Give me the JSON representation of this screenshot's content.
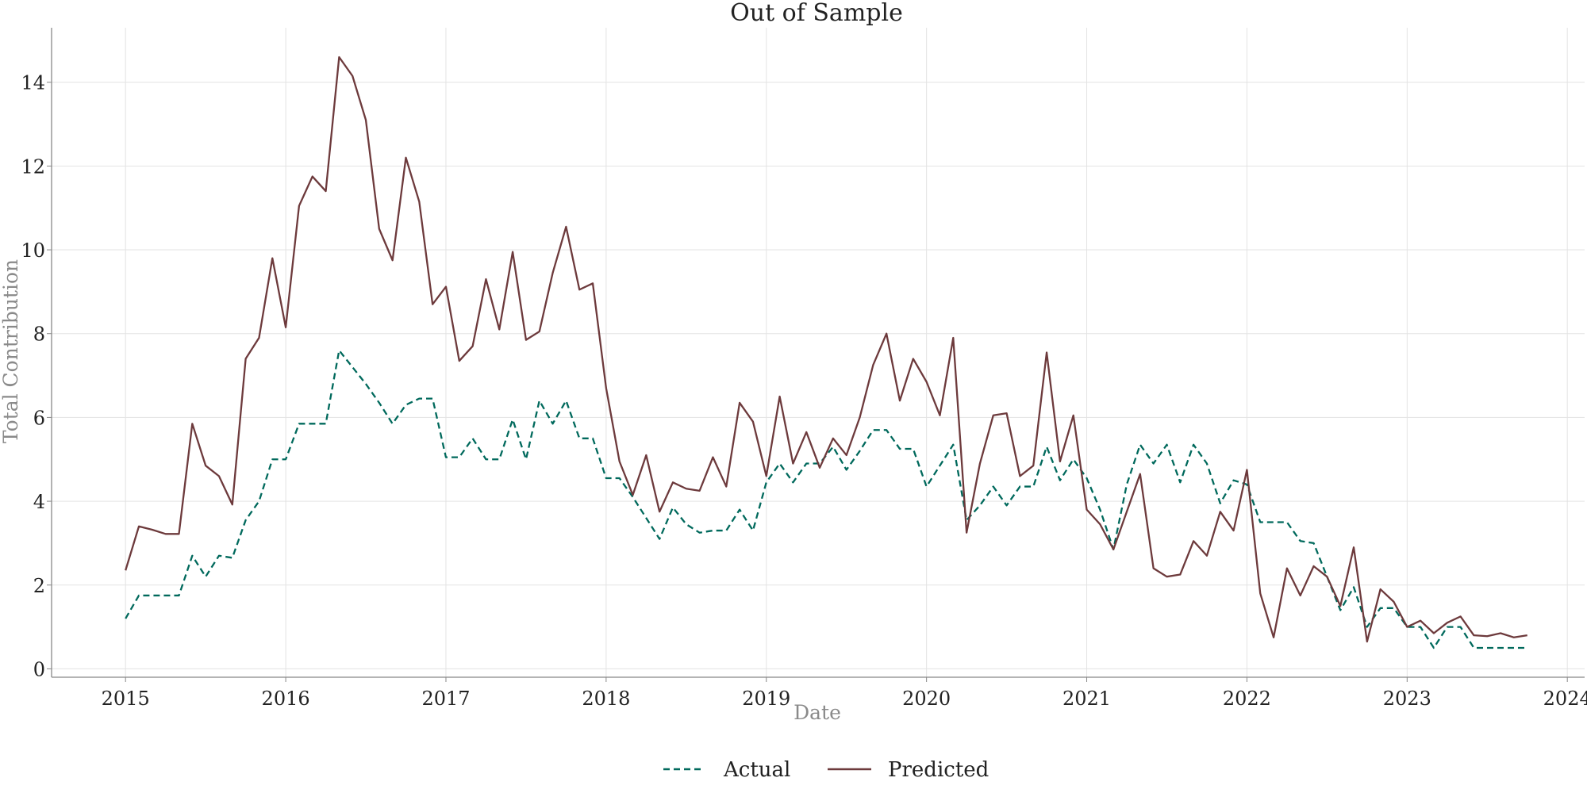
{
  "chart_data": {
    "type": "line",
    "title": "Out of Sample",
    "xlabel": "Date",
    "ylabel": "Total Contribution",
    "xlim": [
      "2014-07-15",
      "2024-02-10"
    ],
    "ylim": [
      -0.2,
      15.3
    ],
    "x_ticks": [
      "2015",
      "2016",
      "2017",
      "2018",
      "2019",
      "2020",
      "2021",
      "2022",
      "2023",
      "2024"
    ],
    "y_ticks": [
      0,
      2,
      4,
      6,
      8,
      10,
      12,
      14
    ],
    "grid": true,
    "legend": "bottom-center",
    "x_start": "2015-01",
    "x_frequency": "monthly",
    "x": [
      "2015-01",
      "2015-02",
      "2015-03",
      "2015-04",
      "2015-05",
      "2015-06",
      "2015-07",
      "2015-08",
      "2015-09",
      "2015-10",
      "2015-11",
      "2015-12",
      "2016-01",
      "2016-02",
      "2016-03",
      "2016-04",
      "2016-05",
      "2016-06",
      "2016-07",
      "2016-08",
      "2016-09",
      "2016-10",
      "2016-11",
      "2016-12",
      "2017-01",
      "2017-02",
      "2017-03",
      "2017-04",
      "2017-05",
      "2017-06",
      "2017-07",
      "2017-08",
      "2017-09",
      "2017-10",
      "2017-11",
      "2017-12",
      "2018-01",
      "2018-02",
      "2018-03",
      "2018-04",
      "2018-05",
      "2018-06",
      "2018-07",
      "2018-08",
      "2018-09",
      "2018-10",
      "2018-11",
      "2018-12",
      "2019-01",
      "2019-02",
      "2019-03",
      "2019-04",
      "2019-05",
      "2019-06",
      "2019-07",
      "2019-08",
      "2019-09",
      "2019-10",
      "2019-11",
      "2019-12",
      "2020-01",
      "2020-02",
      "2020-03",
      "2020-04",
      "2020-05",
      "2020-06",
      "2020-07",
      "2020-08",
      "2020-09",
      "2020-10",
      "2020-11",
      "2020-12",
      "2021-01",
      "2021-02",
      "2021-03",
      "2021-04",
      "2021-05",
      "2021-06",
      "2021-07",
      "2021-08",
      "2021-09",
      "2021-10",
      "2021-11",
      "2021-12",
      "2022-01",
      "2022-02",
      "2022-03",
      "2022-04",
      "2022-05",
      "2022-06",
      "2022-07",
      "2022-08",
      "2022-09",
      "2022-10",
      "2022-11",
      "2022-12",
      "2023-01",
      "2023-02",
      "2023-03",
      "2023-04",
      "2023-05",
      "2023-06",
      "2023-07",
      "2023-08",
      "2023-09",
      "2023-10"
    ],
    "series": [
      {
        "name": "Actual",
        "color": "#00695c",
        "style": "dashed",
        "values": [
          1.2,
          1.75,
          1.75,
          1.75,
          1.75,
          2.7,
          2.2,
          2.7,
          2.65,
          3.55,
          4.0,
          5.0,
          5.0,
          5.85,
          5.85,
          5.85,
          7.6,
          7.2,
          6.8,
          6.35,
          5.85,
          6.3,
          6.45,
          6.45,
          5.05,
          5.05,
          5.5,
          5.0,
          5.0,
          5.95,
          5.0,
          6.4,
          5.85,
          6.4,
          5.5,
          5.5,
          4.55,
          4.55,
          4.1,
          3.6,
          3.1,
          3.85,
          3.45,
          3.25,
          3.3,
          3.3,
          3.8,
          3.3,
          4.45,
          4.9,
          4.45,
          4.9,
          4.9,
          5.3,
          4.75,
          5.2,
          5.7,
          5.7,
          5.25,
          5.25,
          4.35,
          4.85,
          5.35,
          3.55,
          3.9,
          4.35,
          3.9,
          4.35,
          4.35,
          5.3,
          4.5,
          5.0,
          4.55,
          3.8,
          2.85,
          4.4,
          5.35,
          4.9,
          5.35,
          4.45,
          5.35,
          4.9,
          3.95,
          4.5,
          4.4,
          3.5,
          3.5,
          3.5,
          3.05,
          3.0,
          2.2,
          1.4,
          1.95,
          1.0,
          1.45,
          1.45,
          1.0,
          1.0,
          0.5,
          1.0,
          1.0,
          0.5,
          0.5,
          0.5,
          0.5,
          0.5
        ]
      },
      {
        "name": "Predicted",
        "color": "#6d3a3c",
        "style": "solid",
        "values": [
          2.35,
          3.4,
          3.32,
          3.22,
          3.22,
          5.85,
          4.85,
          4.6,
          3.92,
          7.4,
          7.9,
          9.8,
          8.15,
          11.05,
          11.75,
          11.4,
          14.6,
          14.15,
          13.1,
          10.5,
          9.75,
          12.2,
          11.15,
          8.7,
          9.12,
          7.35,
          7.7,
          9.3,
          8.1,
          9.95,
          7.85,
          8.05,
          9.45,
          10.55,
          9.05,
          9.2,
          6.7,
          4.95,
          4.15,
          5.1,
          3.75,
          4.45,
          4.3,
          4.25,
          5.05,
          4.35,
          6.35,
          5.9,
          4.6,
          6.5,
          4.9,
          5.65,
          4.8,
          5.5,
          5.1,
          6.0,
          7.25,
          8.0,
          6.4,
          7.4,
          6.85,
          6.05,
          7.9,
          3.25,
          4.9,
          6.05,
          6.1,
          4.6,
          4.85,
          7.55,
          4.95,
          6.05,
          3.8,
          3.45,
          2.85,
          3.75,
          4.65,
          2.4,
          2.2,
          2.25,
          3.05,
          2.7,
          3.75,
          3.3,
          4.75,
          1.8,
          0.75,
          2.4,
          1.75,
          2.45,
          2.2,
          1.5,
          2.9,
          0.65,
          1.9,
          1.6,
          1.0,
          1.15,
          0.85,
          1.1,
          1.25,
          0.8,
          0.78,
          0.85,
          0.75,
          0.8
        ]
      }
    ]
  }
}
